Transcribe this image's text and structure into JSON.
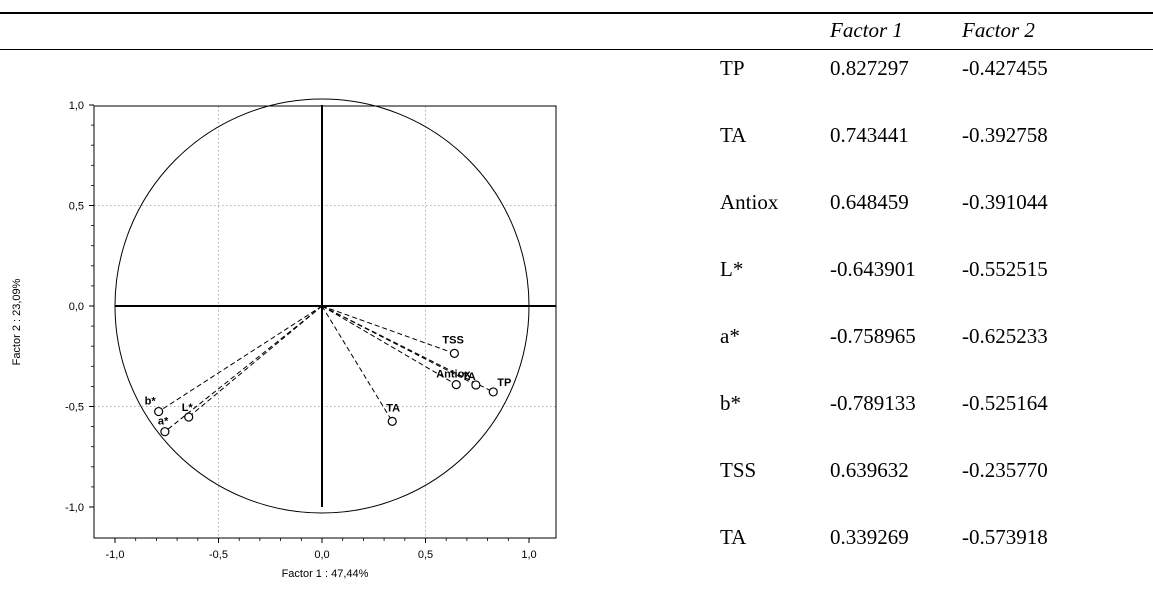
{
  "chart_data": {
    "type": "scatter",
    "title": "",
    "xlabel": "Factor 1 : 47,44%",
    "ylabel": "Factor 2 : 23,09%",
    "xlim": [
      -1.0,
      1.0
    ],
    "ylim": [
      -1.0,
      1.0
    ],
    "x_ticks": [
      "-1,0",
      "-0,5",
      "0,0",
      "0,5",
      "1,0"
    ],
    "y_ticks": [
      "-1,0",
      "-0,5",
      "0,0",
      "0,5",
      "1,0"
    ],
    "grid": true,
    "unit_circle": true,
    "points": [
      {
        "label": "TP",
        "x": 0.827297,
        "y": -0.427455
      },
      {
        "label": "TA",
        "x": 0.743441,
        "y": -0.392758
      },
      {
        "label": "Antiox",
        "x": 0.648459,
        "y": -0.391044
      },
      {
        "label": "L*",
        "x": -0.643901,
        "y": -0.552515
      },
      {
        "label": "a*",
        "x": -0.758965,
        "y": -0.625233
      },
      {
        "label": "b*",
        "x": -0.789133,
        "y": -0.525164
      },
      {
        "label": "TSS",
        "x": 0.639632,
        "y": -0.23577
      },
      {
        "label": "TA",
        "x": 0.339269,
        "y": -0.573918
      }
    ]
  },
  "table": {
    "headers": [
      "",
      "Factor 1",
      "Factor 2"
    ],
    "rows": [
      {
        "variable": "TP",
        "factor1": "0.827297",
        "factor2": "-0.427455"
      },
      {
        "variable": "TA",
        "factor1": "0.743441",
        "factor2": "-0.392758"
      },
      {
        "variable": "Antiox",
        "factor1": "0.648459",
        "factor2": "-0.391044"
      },
      {
        "variable": "L*",
        "factor1": "-0.643901",
        "factor2": "-0.552515"
      },
      {
        "variable": "a*",
        "factor1": "-0.758965",
        "factor2": "-0.625233"
      },
      {
        "variable": "b*",
        "factor1": "-0.789133",
        "factor2": "-0.525164"
      },
      {
        "variable": "TSS",
        "factor1": "0.639632",
        "factor2": "-0.235770"
      },
      {
        "variable": "TA",
        "factor1": "0.339269",
        "factor2": "-0.573918"
      }
    ]
  }
}
